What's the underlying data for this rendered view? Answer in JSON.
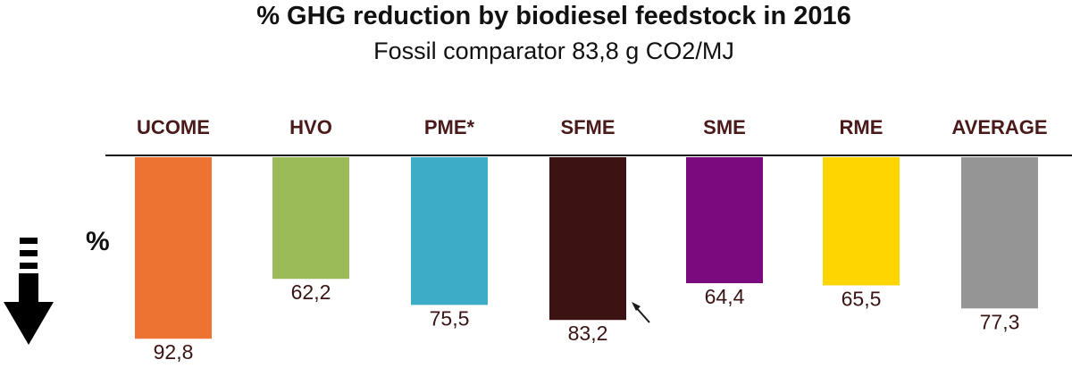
{
  "chart_data": {
    "type": "bar",
    "title": "% GHG reduction by biodiesel feedstock in 2016",
    "subtitle": "Fossil comparator 83,8 g CO2/MJ",
    "ylabel": "%",
    "orientation": "downward",
    "ylim": [
      0,
      100
    ],
    "categories": [
      "UCOME",
      "HVO",
      "PME*",
      "SFME",
      "SME",
      "RME",
      "AVERAGE"
    ],
    "values": [
      92.8,
      62.2,
      75.5,
      83.2,
      64.4,
      65.5,
      77.3
    ],
    "value_labels": [
      "92,8",
      "62,2",
      "75,5",
      "83,2",
      "64,4",
      "65,5",
      "77,3"
    ],
    "colors": [
      "#ED7332",
      "#9BBB59",
      "#3BADC6",
      "#3D1213",
      "#7A0A7E",
      "#FFD500",
      "#959595"
    ],
    "label_color": "#4a1a1a",
    "annotations": [
      {
        "type": "arrow",
        "target": "SFME",
        "icon": "pointer-arrow-icon"
      },
      {
        "type": "legend-arrow",
        "icon": "down-arrow-icon",
        "meaning": "lower bars = greater reduction"
      }
    ],
    "grid": false,
    "legend": "none"
  }
}
